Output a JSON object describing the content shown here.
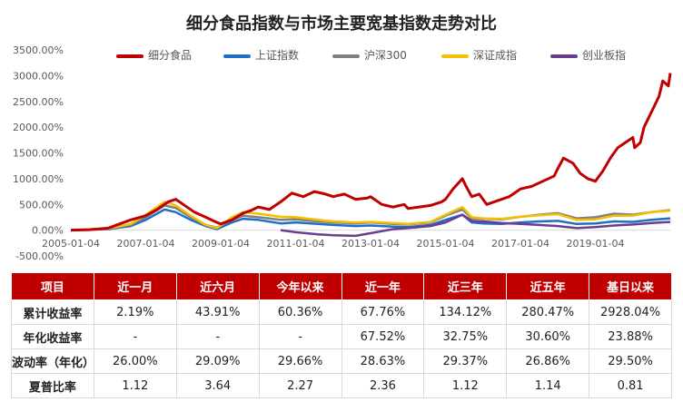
{
  "colors": {
    "series": [
      "#c00000",
      "#1f6fc5",
      "#808080",
      "#f5c000",
      "#6a3d8f"
    ],
    "header_bg": "#c00000",
    "axis_text": "#595959",
    "grid": "#d9d9d9"
  },
  "chart_data": {
    "type": "line",
    "title": "细分食品指数与市场主要宽基指数走势对比",
    "xlabel": "",
    "ylabel": "",
    "x_ticks": [
      "2005-01-04",
      "2007-01-04",
      "2009-01-04",
      "2011-01-04",
      "2013-01-04",
      "2015-01-04",
      "2017-01-04",
      "2019-01-04"
    ],
    "y_ticks": [
      "3500.00%",
      "3000.00%",
      "2500.00%",
      "2000.00%",
      "1500.00%",
      "1000.00%",
      "500.00%",
      "0.00%",
      "-500.00%"
    ],
    "ylim": [
      -500,
      3500
    ],
    "xlim": [
      2005.0,
      2021.0
    ],
    "legend_position": "top",
    "series": [
      {
        "name": "细分食品",
        "x": [
          2005.0,
          2005.5,
          2006.0,
          2006.3,
          2006.6,
          2007.0,
          2007.3,
          2007.6,
          2007.8,
          2008.0,
          2008.3,
          2008.6,
          2008.9,
          2009.0,
          2009.3,
          2009.6,
          2009.8,
          2010.0,
          2010.3,
          2010.6,
          2010.9,
          2011.2,
          2011.5,
          2011.8,
          2012.0,
          2012.3,
          2012.6,
          2012.9,
          2013.0,
          2013.3,
          2013.6,
          2013.9,
          2014.0,
          2014.3,
          2014.6,
          2014.9,
          2015.0,
          2015.2,
          2015.45,
          2015.55,
          2015.7,
          2015.9,
          2016.0,
          2016.1,
          2016.3,
          2016.5,
          2016.7,
          2016.9,
          2017.0,
          2017.3,
          2017.6,
          2017.9,
          2018.0,
          2018.15,
          2018.4,
          2018.6,
          2018.8,
          2019.0,
          2019.2,
          2019.4,
          2019.6,
          2019.8,
          2020.0,
          2020.05,
          2020.2,
          2020.3,
          2020.5,
          2020.7,
          2020.8,
          2020.95,
          2021.0
        ],
        "values": [
          0,
          10,
          40,
          120,
          200,
          280,
          400,
          550,
          600,
          500,
          350,
          250,
          150,
          120,
          200,
          330,
          380,
          450,
          400,
          550,
          720,
          650,
          750,
          700,
          650,
          700,
          600,
          620,
          650,
          500,
          450,
          500,
          420,
          450,
          480,
          550,
          600,
          800,
          1000,
          850,
          650,
          700,
          600,
          500,
          550,
          600,
          650,
          750,
          800,
          850,
          950,
          1050,
          1200,
          1400,
          1300,
          1100,
          1000,
          950,
          1150,
          1400,
          1600,
          1700,
          1800,
          1600,
          1700,
          2000,
          2300,
          2600,
          2900,
          2800,
          3050
        ]
      },
      {
        "name": "上证指数",
        "x": [
          2005.0,
          2006.0,
          2006.6,
          2007.0,
          2007.5,
          2007.8,
          2008.2,
          2008.6,
          2008.9,
          2009.3,
          2009.6,
          2010.0,
          2010.6,
          2011.0,
          2011.6,
          2012.0,
          2012.6,
          2013.0,
          2013.6,
          2014.0,
          2014.6,
          2015.0,
          2015.45,
          2015.7,
          2016.0,
          2016.5,
          2017.0,
          2017.5,
          2018.0,
          2018.5,
          2019.0,
          2019.5,
          2020.0,
          2020.5,
          2021.0
        ],
        "values": [
          0,
          20,
          80,
          200,
          400,
          350,
          200,
          80,
          20,
          150,
          220,
          200,
          130,
          150,
          120,
          100,
          80,
          90,
          70,
          60,
          100,
          200,
          300,
          150,
          130,
          120,
          150,
          170,
          180,
          120,
          130,
          170,
          160,
          200,
          230
        ]
      },
      {
        "name": "沪深300",
        "x": [
          2005.0,
          2006.0,
          2006.6,
          2007.0,
          2007.5,
          2007.8,
          2008.2,
          2008.6,
          2008.9,
          2009.3,
          2009.6,
          2010.0,
          2010.6,
          2011.0,
          2011.6,
          2012.0,
          2012.6,
          2013.0,
          2013.6,
          2014.0,
          2014.6,
          2015.0,
          2015.45,
          2015.7,
          2016.0,
          2016.5,
          2017.0,
          2017.5,
          2018.0,
          2018.5,
          2019.0,
          2019.5,
          2020.0,
          2020.5,
          2021.0
        ],
        "values": [
          0,
          30,
          100,
          250,
          480,
          430,
          250,
          100,
          50,
          200,
          280,
          250,
          200,
          210,
          170,
          150,
          130,
          150,
          120,
          110,
          150,
          280,
          400,
          230,
          220,
          210,
          260,
          300,
          330,
          230,
          250,
          320,
          300,
          350,
          390
        ]
      },
      {
        "name": "深证成指",
        "x": [
          2005.0,
          2006.0,
          2006.6,
          2007.0,
          2007.5,
          2007.8,
          2008.2,
          2008.6,
          2008.9,
          2009.3,
          2009.6,
          2010.0,
          2010.6,
          2011.0,
          2011.6,
          2012.0,
          2012.6,
          2013.0,
          2013.6,
          2014.0,
          2014.6,
          2015.0,
          2015.45,
          2015.7,
          2016.0,
          2016.5,
          2017.0,
          2017.5,
          2018.0,
          2018.5,
          2019.0,
          2019.5,
          2020.0,
          2020.5,
          2021.0
        ],
        "values": [
          0,
          30,
          120,
          300,
          550,
          480,
          280,
          100,
          40,
          250,
          350,
          320,
          260,
          250,
          200,
          170,
          150,
          160,
          140,
          120,
          160,
          300,
          450,
          250,
          230,
          220,
          260,
          290,
          310,
          200,
          210,
          280,
          280,
          350,
          380
        ]
      },
      {
        "name": "创业板指",
        "x": [
          2010.6,
          2011.0,
          2011.6,
          2012.0,
          2012.6,
          2013.0,
          2013.6,
          2014.0,
          2014.6,
          2015.0,
          2015.45,
          2015.7,
          2016.0,
          2016.5,
          2017.0,
          2017.5,
          2018.0,
          2018.5,
          2019.0,
          2019.5,
          2020.0,
          2020.5,
          2021.0
        ],
        "values": [
          0,
          -40,
          -80,
          -100,
          -110,
          -60,
          20,
          40,
          80,
          150,
          300,
          180,
          170,
          140,
          120,
          100,
          80,
          40,
          60,
          90,
          110,
          140,
          160
        ]
      }
    ]
  },
  "table": {
    "headers": [
      "项目",
      "近一月",
      "近六月",
      "今年以来",
      "近一年",
      "近三年",
      "近五年",
      "基日以来"
    ],
    "rows": [
      [
        "累计收益率",
        "2.19%",
        "43.91%",
        "60.36%",
        "67.76%",
        "134.12%",
        "280.47%",
        "2928.04%"
      ],
      [
        "年化收益率",
        "-",
        "-",
        "-",
        "67.52%",
        "32.75%",
        "30.60%",
        "23.88%"
      ],
      [
        "波动率（年化）",
        "26.00%",
        "29.09%",
        "29.66%",
        "28.63%",
        "29.37%",
        "26.86%",
        "29.50%"
      ],
      [
        "夏普比率",
        "1.12",
        "3.64",
        "2.27",
        "2.36",
        "1.12",
        "1.14",
        "0.81"
      ]
    ]
  }
}
